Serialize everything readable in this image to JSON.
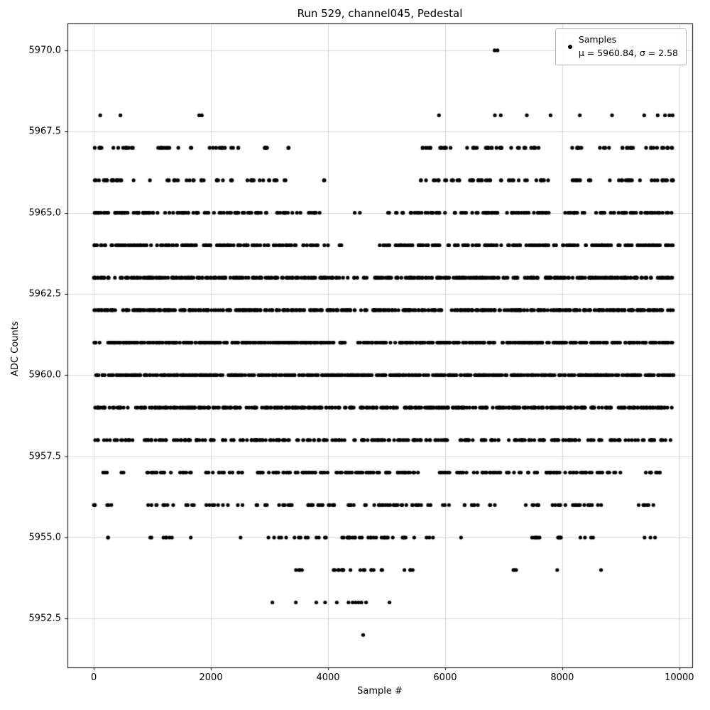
{
  "chart_data": {
    "type": "scatter",
    "title": "Run 529, channel045, Pedestal",
    "xlabel": "Sample #",
    "ylabel": "ADC Counts",
    "legend": {
      "label": "Samples",
      "stats": "μ = 5960.84, σ = 2.58"
    },
    "stats": {
      "mu": 5960.84,
      "sigma": 2.58
    },
    "marker_color": "#000000",
    "grid": true,
    "legend_position": "upper right",
    "xlim": [
      -450,
      10220
    ],
    "ylim": [
      5951.0,
      5970.83
    ],
    "x_ticks": [
      {
        "label": "0",
        "value": 0
      },
      {
        "label": "2000",
        "value": 2000
      },
      {
        "label": "4000",
        "value": 4000
      },
      {
        "label": "6000",
        "value": 6000
      },
      {
        "label": "8000",
        "value": 8000
      },
      {
        "label": "10000",
        "value": 10000
      }
    ],
    "y_ticks": [
      {
        "label": "5970.0",
        "value": 5970.0
      },
      {
        "label": "5967.5",
        "value": 5967.5
      },
      {
        "label": "5965.0",
        "value": 5965.0
      },
      {
        "label": "5962.5",
        "value": 5962.5
      },
      {
        "label": "5960.0",
        "value": 5960.0
      },
      {
        "label": "5957.5",
        "value": 5957.5
      },
      {
        "label": "5955.0",
        "value": 5955.0
      },
      {
        "label": "5952.5",
        "value": 5952.5
      }
    ],
    "levels": [
      {
        "value": 5970,
        "xs": [
          6845,
          6895
        ]
      },
      {
        "value": 5968,
        "xs": [
          110,
          455,
          1800,
          1845,
          5895,
          6850,
          6950,
          7395,
          7800,
          8300,
          8850,
          9400,
          9630,
          9755,
          9830,
          9885
        ]
      },
      {
        "value": 5967,
        "segments": [
          [
            0,
            170,
            6
          ],
          [
            260,
            700,
            10
          ],
          [
            1050,
            1700,
            12
          ],
          [
            1950,
            2700,
            12
          ],
          [
            2780,
            3000,
            5
          ],
          [
            3300,
            3360,
            2
          ],
          [
            5600,
            5800,
            6
          ],
          [
            5900,
            6100,
            8
          ],
          [
            6350,
            7000,
            18
          ],
          [
            7100,
            7700,
            12
          ],
          [
            8100,
            8400,
            7
          ],
          [
            8600,
            8800,
            4
          ],
          [
            8950,
            9250,
            7
          ],
          [
            9400,
            9900,
            12
          ]
        ]
      },
      {
        "value": 5966,
        "segments": [
          [
            0,
            250,
            8
          ],
          [
            300,
            900,
            14
          ],
          [
            950,
            1900,
            16
          ],
          [
            2050,
            2400,
            8
          ],
          [
            2500,
            3000,
            10
          ],
          [
            3050,
            3300,
            5
          ],
          [
            3850,
            3950,
            2
          ],
          [
            5550,
            5900,
            8
          ],
          [
            5950,
            6250,
            8
          ],
          [
            6400,
            6900,
            14
          ],
          [
            6950,
            7400,
            10
          ],
          [
            7500,
            7900,
            8
          ],
          [
            8150,
            8500,
            10
          ],
          [
            8800,
            9200,
            10
          ],
          [
            9300,
            9900,
            14
          ]
        ]
      },
      {
        "value": 5965,
        "segments": [
          [
            0,
            600,
            25
          ],
          [
            650,
            1300,
            22
          ],
          [
            1350,
            2000,
            20
          ],
          [
            2050,
            2700,
            20
          ],
          [
            2750,
            3400,
            18
          ],
          [
            3450,
            3900,
            10
          ],
          [
            4450,
            4550,
            2
          ],
          [
            4900,
            5300,
            8
          ],
          [
            5350,
            6100,
            20
          ],
          [
            6150,
            7000,
            26
          ],
          [
            7050,
            7900,
            24
          ],
          [
            7950,
            8400,
            12
          ],
          [
            8550,
            9100,
            16
          ],
          [
            9150,
            9900,
            22
          ]
        ]
      },
      {
        "value": 5964,
        "segments": [
          [
            0,
            1000,
            40
          ],
          [
            1050,
            2000,
            38
          ],
          [
            2050,
            3000,
            36
          ],
          [
            3050,
            3450,
            14
          ],
          [
            3550,
            4000,
            10
          ],
          [
            4150,
            4300,
            4
          ],
          [
            4850,
            5050,
            6
          ],
          [
            5100,
            6000,
            32
          ],
          [
            6050,
            7000,
            34
          ],
          [
            7050,
            7950,
            32
          ],
          [
            8000,
            8300,
            12
          ],
          [
            8350,
            9000,
            24
          ],
          [
            9050,
            9900,
            30
          ]
        ]
      },
      {
        "value": 5963,
        "segments": [
          [
            0,
            1000,
            45
          ],
          [
            1000,
            2000,
            45
          ],
          [
            2000,
            3000,
            45
          ],
          [
            3000,
            4100,
            48
          ],
          [
            4100,
            4500,
            8
          ],
          [
            4550,
            4700,
            3
          ],
          [
            4800,
            6000,
            50
          ],
          [
            6000,
            7000,
            45
          ],
          [
            7000,
            8000,
            45
          ],
          [
            8000,
            9000,
            45
          ],
          [
            9000,
            9900,
            40
          ]
        ]
      },
      {
        "value": 5962,
        "segments": [
          [
            0,
            1500,
            75
          ],
          [
            1500,
            3000,
            75
          ],
          [
            3000,
            4350,
            65
          ],
          [
            4350,
            4700,
            10
          ],
          [
            4700,
            6000,
            65
          ],
          [
            6000,
            7500,
            75
          ],
          [
            7500,
            9000,
            75
          ],
          [
            9000,
            9900,
            45
          ]
        ]
      },
      {
        "value": 5961,
        "segments": [
          [
            0,
            1500,
            75
          ],
          [
            1500,
            3000,
            75
          ],
          [
            3000,
            4350,
            68
          ],
          [
            4500,
            6000,
            72
          ],
          [
            6000,
            7500,
            75
          ],
          [
            7500,
            9000,
            75
          ],
          [
            9000,
            9900,
            45
          ]
        ]
      },
      {
        "value": 5960,
        "segments": [
          [
            0,
            1500,
            78
          ],
          [
            1500,
            3000,
            78
          ],
          [
            3000,
            4500,
            78
          ],
          [
            4500,
            6000,
            78
          ],
          [
            6000,
            7500,
            78
          ],
          [
            7500,
            9000,
            78
          ],
          [
            9000,
            9900,
            48
          ]
        ]
      },
      {
        "value": 5959,
        "segments": [
          [
            0,
            600,
            28
          ],
          [
            700,
            1500,
            38
          ],
          [
            1500,
            3000,
            72
          ],
          [
            3000,
            4500,
            72
          ],
          [
            4500,
            6000,
            72
          ],
          [
            6000,
            7500,
            72
          ],
          [
            7500,
            9000,
            72
          ],
          [
            9000,
            9900,
            44
          ]
        ]
      },
      {
        "value": 5958,
        "segments": [
          [
            0,
            80,
            3
          ],
          [
            150,
            700,
            14
          ],
          [
            750,
            1700,
            28
          ],
          [
            1750,
            2450,
            18
          ],
          [
            2500,
            4300,
            55
          ],
          [
            4350,
            5600,
            38
          ],
          [
            5650,
            6500,
            24
          ],
          [
            6550,
            7000,
            12
          ],
          [
            7050,
            8700,
            48
          ],
          [
            8750,
            9300,
            14
          ],
          [
            9350,
            9900,
            14
          ]
        ]
      },
      {
        "value": 5957,
        "segments": [
          [
            150,
            260,
            3
          ],
          [
            450,
            520,
            2
          ],
          [
            900,
            1400,
            14
          ],
          [
            1450,
            1700,
            7
          ],
          [
            1900,
            2600,
            15
          ],
          [
            2750,
            4000,
            40
          ],
          [
            4050,
            5600,
            50
          ],
          [
            5900,
            6100,
            7
          ],
          [
            6150,
            7000,
            24
          ],
          [
            7050,
            8000,
            28
          ],
          [
            8050,
            8700,
            20
          ],
          [
            8750,
            9000,
            5
          ],
          [
            9300,
            9700,
            9
          ]
        ]
      },
      {
        "value": 5956,
        "segments": [
          [
            0,
            80,
            3
          ],
          [
            200,
            350,
            3
          ],
          [
            850,
            1400,
            9
          ],
          [
            1550,
            1750,
            4
          ],
          [
            1900,
            2300,
            7
          ],
          [
            2450,
            2550,
            2
          ],
          [
            2750,
            3000,
            4
          ],
          [
            3100,
            4200,
            26
          ],
          [
            4250,
            5600,
            32
          ],
          [
            5700,
            5800,
            2
          ],
          [
            5950,
            6100,
            3
          ],
          [
            6200,
            6900,
            10
          ],
          [
            7300,
            7600,
            7
          ],
          [
            7800,
            8700,
            20
          ],
          [
            9250,
            9600,
            7
          ]
        ]
      },
      {
        "value": 5955,
        "segments": [
          [
            200,
            260,
            2
          ],
          [
            950,
            1010,
            2
          ],
          [
            1100,
            1500,
            5
          ],
          [
            1650,
            1700,
            1
          ],
          [
            2500,
            2560,
            1
          ],
          [
            2900,
            3300,
            5
          ],
          [
            3400,
            4000,
            9
          ],
          [
            4100,
            5200,
            24
          ],
          [
            5250,
            5500,
            5
          ],
          [
            5600,
            5800,
            3
          ],
          [
            6250,
            6310,
            1
          ],
          [
            7450,
            7700,
            6
          ],
          [
            7900,
            8100,
            5
          ],
          [
            8300,
            8600,
            4
          ],
          [
            9400,
            9600,
            3
          ]
        ]
      },
      {
        "value": 5954,
        "segments": [
          [
            3450,
            3600,
            4
          ],
          [
            4050,
            4450,
            9
          ],
          [
            4550,
            4800,
            6
          ],
          [
            4900,
            5000,
            2
          ],
          [
            5300,
            5450,
            4
          ],
          [
            7150,
            7300,
            3
          ],
          [
            7900,
            7960,
            1
          ],
          [
            8650,
            8710,
            1
          ]
        ]
      },
      {
        "value": 5953,
        "xs": [
          3050,
          3450,
          3800,
          3950,
          4150,
          4350,
          4420,
          4470,
          4520,
          4570,
          4650,
          5050
        ]
      },
      {
        "value": 5952,
        "xs": [
          4600
        ]
      }
    ]
  }
}
